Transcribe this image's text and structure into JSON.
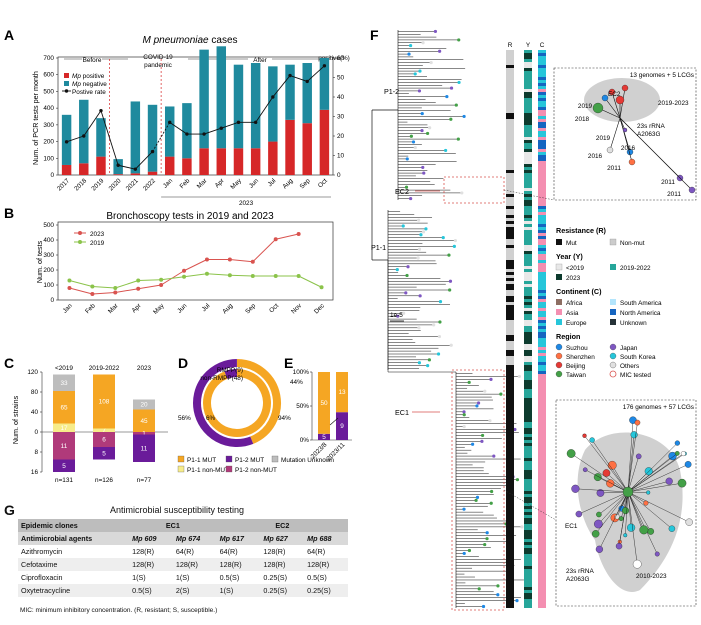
{
  "panelA": {
    "letter": "A",
    "title": "M pneumoniae cases",
    "title_italic": "M pneumoniae",
    "title_rest": " cases",
    "ylabel_left": "Num. of PCR tests per month",
    "ylabel_right": "positive(%)",
    "periods": [
      "Before",
      "COVID-19\npandemic",
      "After"
    ],
    "period_labels": [
      "Before",
      "COVID-19",
      "pandemic",
      "After"
    ],
    "legend": [
      "Mp positive",
      "Mp negative",
      "Postive rate"
    ],
    "legend_italic": [
      "Mp",
      "Mp",
      ""
    ],
    "legend_rest": [
      " positive",
      " negative",
      "Postive rate"
    ],
    "year_label": "2023",
    "left_ticks": [
      "0",
      "100",
      "200",
      "300",
      "400",
      "500",
      "600",
      "700"
    ],
    "right_ticks": [
      "0",
      "10",
      "20",
      "30",
      "40",
      "50",
      "60"
    ],
    "colors": {
      "positive": "#d62728",
      "negative": "#1f8a9e",
      "line": "#111111"
    }
  },
  "panelB": {
    "letter": "B",
    "title": "Bronchoscopy tests in 2019 and 2023",
    "ylabel": "Num. of tests",
    "legend": [
      "2023",
      "2019"
    ],
    "colors": {
      "y2023": "#d9534f",
      "y2019": "#8bc34a"
    },
    "y_ticks": [
      "0",
      "100",
      "200",
      "300",
      "400",
      "500"
    ]
  },
  "panelC": {
    "letter": "C",
    "ylabel": "Num. of strains",
    "groups": [
      "<2019",
      "2019-2022",
      "2023"
    ],
    "n_labels": [
      "n=131",
      "n=126",
      "n=77"
    ],
    "y_ticks_up": [
      "120",
      "80",
      "40",
      "0"
    ],
    "y_ticks_down": [
      "8",
      "16"
    ]
  },
  "panelD": {
    "letter": "D",
    "labels": [
      "RMPP(9)",
      "non-RMPP(48)",
      "44%",
      "94%",
      "56%",
      "6%"
    ]
  },
  "panelE": {
    "letter": "E",
    "y_ticks": [
      "100%",
      "50%",
      "0%"
    ],
    "categories": [
      "2023/8",
      "2023/11"
    ],
    "values_top": [
      "50",
      "13"
    ],
    "values_bottom": [
      "5",
      "9"
    ]
  },
  "legendCDE": {
    "items": [
      "P1-1 MUT",
      "P1-2 MUT",
      "Mutation Unknown",
      "P1-1 non-MUT",
      "P1-2 non-MUT"
    ],
    "colors": [
      "#f5a623",
      "#6a1b9a",
      "#bdbdbd",
      "#f7ec8a",
      "#b03a7a"
    ]
  },
  "panelF": {
    "letter": "F",
    "clade_labels": [
      "P1-2",
      "P1-1",
      "EC2",
      "EC1"
    ],
    "column_headers": [
      "R",
      "Y",
      "C"
    ],
    "scale_label": "1e-5",
    "inset_top": {
      "caption": "13 genomes + 5 LCGs",
      "years": [
        "2019-2023",
        "2019",
        "2018",
        "2019",
        "2016",
        "2016",
        "2011",
        "2011",
        "2011"
      ],
      "cluster": "EC2",
      "note": [
        "23s rRNA",
        "A2063G"
      ]
    },
    "inset_bottom": {
      "caption": "176 genomes + 57 LCGs",
      "cluster": "EC1",
      "years": "2010-2023",
      "note": [
        "23s rRNA",
        "A2063G"
      ]
    },
    "legend": {
      "resistance_title": "Resistance (R)",
      "resistance": [
        "Mut",
        "Non-mut"
      ],
      "year_title": "Year (Y)",
      "year": [
        "<2019",
        "2019-2022",
        "2023"
      ],
      "continent_title": "Continent (C)",
      "continent": [
        "Africa",
        "South America",
        "Asia",
        "North America",
        "Europe",
        "Unknown"
      ],
      "region_title": "Region",
      "region": [
        "Suzhou",
        "Japan",
        "Shenzhen",
        "South Korea",
        "Beijing",
        "Others",
        "Taiwan",
        "MIC tested"
      ]
    }
  },
  "panelG": {
    "letter": "G",
    "title": "Antimicrobial susceptibility testing",
    "header1": [
      "Epidemic clones",
      "EC1",
      "EC2"
    ],
    "header2": [
      "Antimicrobial agents",
      "Mp 609",
      "Mp 674",
      "Mp 617",
      "Mp 627",
      "Mp 688"
    ],
    "rows": [
      [
        "Azithromycin",
        "128(R)",
        "64(R)",
        "64(R)",
        "128(R)",
        "64(R)"
      ],
      [
        "Cefotaxime",
        "128(R)",
        "128(R)",
        "128(R)",
        "128(R)",
        "128(R)"
      ],
      [
        "Ciprofloxacin",
        "1(S)",
        "1(S)",
        "0.5(S)",
        "0.25(S)",
        "0.5(S)"
      ],
      [
        "Oxytetracycline",
        "0.5(S)",
        "2(S)",
        "1(S)",
        "0.25(S)",
        "0.25(S)"
      ]
    ],
    "footnote": "MIC: minimum inhibitory concentration. (R, resistant; S, susceptible.)"
  },
  "chart_data": [
    {
      "type": "bar",
      "panel": "A",
      "title": "M pneumoniae cases",
      "categories": [
        "2017",
        "2018",
        "2019",
        "2020",
        "2021",
        "2022",
        "Jan",
        "Feb",
        "Mar",
        "Apr",
        "May",
        "Jun",
        "Jul",
        "Aug",
        "Sep",
        "Oct"
      ],
      "series": [
        {
          "name": "Mp positive",
          "values": [
            60,
            70,
            110,
            5,
            10,
            20,
            110,
            100,
            160,
            160,
            160,
            160,
            200,
            330,
            310,
            390
          ]
        },
        {
          "name": "Mp negative",
          "values": [
            300,
            380,
            230,
            90,
            430,
            400,
            300,
            330,
            590,
            610,
            500,
            510,
            450,
            330,
            360,
            310
          ]
        },
        {
          "name": "Postive rate",
          "values": [
            17,
            20,
            33,
            5,
            3,
            12,
            27,
            21,
            21,
            24,
            27,
            27,
            40,
            51,
            48,
            56
          ]
        }
      ],
      "xlabel": "",
      "ylabel": "Num. of PCR tests per month",
      "ylim": [
        0,
        700
      ],
      "y2lim": [
        0,
        60
      ]
    },
    {
      "type": "line",
      "panel": "B",
      "title": "Bronchoscopy tests in 2019 and 2023",
      "categories": [
        "Jan",
        "Feb",
        "Mar",
        "Apr",
        "May",
        "Jun",
        "Jul",
        "Aug",
        "Sep",
        "Oct",
        "Nov",
        "Dec"
      ],
      "series": [
        {
          "name": "2023",
          "values": [
            80,
            40,
            50,
            75,
            100,
            195,
            270,
            270,
            255,
            405,
            440,
            null
          ]
        },
        {
          "name": "2019",
          "values": [
            130,
            90,
            80,
            130,
            135,
            155,
            175,
            165,
            160,
            160,
            160,
            85
          ]
        }
      ],
      "ylabel": "Num. of tests",
      "ylim": [
        0,
        500
      ]
    },
    {
      "type": "bar",
      "panel": "C",
      "categories": [
        "<2019",
        "2019-2022",
        "2023"
      ],
      "series": [
        {
          "name": "P1-1 non-MUT",
          "values": [
            17,
            7,
            0
          ]
        },
        {
          "name": "P1-1 MUT",
          "values": [
            65,
            108,
            45
          ]
        },
        {
          "name": "Mutation Unknown",
          "values": [
            33,
            0,
            20
          ]
        },
        {
          "name": "P1-2 non-MUT",
          "values": [
            11,
            6,
            1
          ]
        },
        {
          "name": "P1-2 MUT",
          "values": [
            5,
            5,
            11
          ]
        }
      ],
      "ylabel": "Num. of strains"
    },
    {
      "type": "pie",
      "panel": "D",
      "series": [
        {
          "name": "RMPP(9)",
          "values": [
            44,
            56
          ]
        },
        {
          "name": "non-RMPP(48)",
          "values": [
            94,
            6
          ]
        }
      ]
    },
    {
      "type": "bar",
      "panel": "E",
      "categories": [
        "2023/8",
        "2023/11"
      ],
      "series": [
        {
          "name": "P1-1 MUT",
          "values": [
            50,
            13
          ]
        },
        {
          "name": "P1-2 MUT",
          "values": [
            5,
            9
          ]
        }
      ],
      "ylim": [
        0,
        100
      ]
    }
  ]
}
